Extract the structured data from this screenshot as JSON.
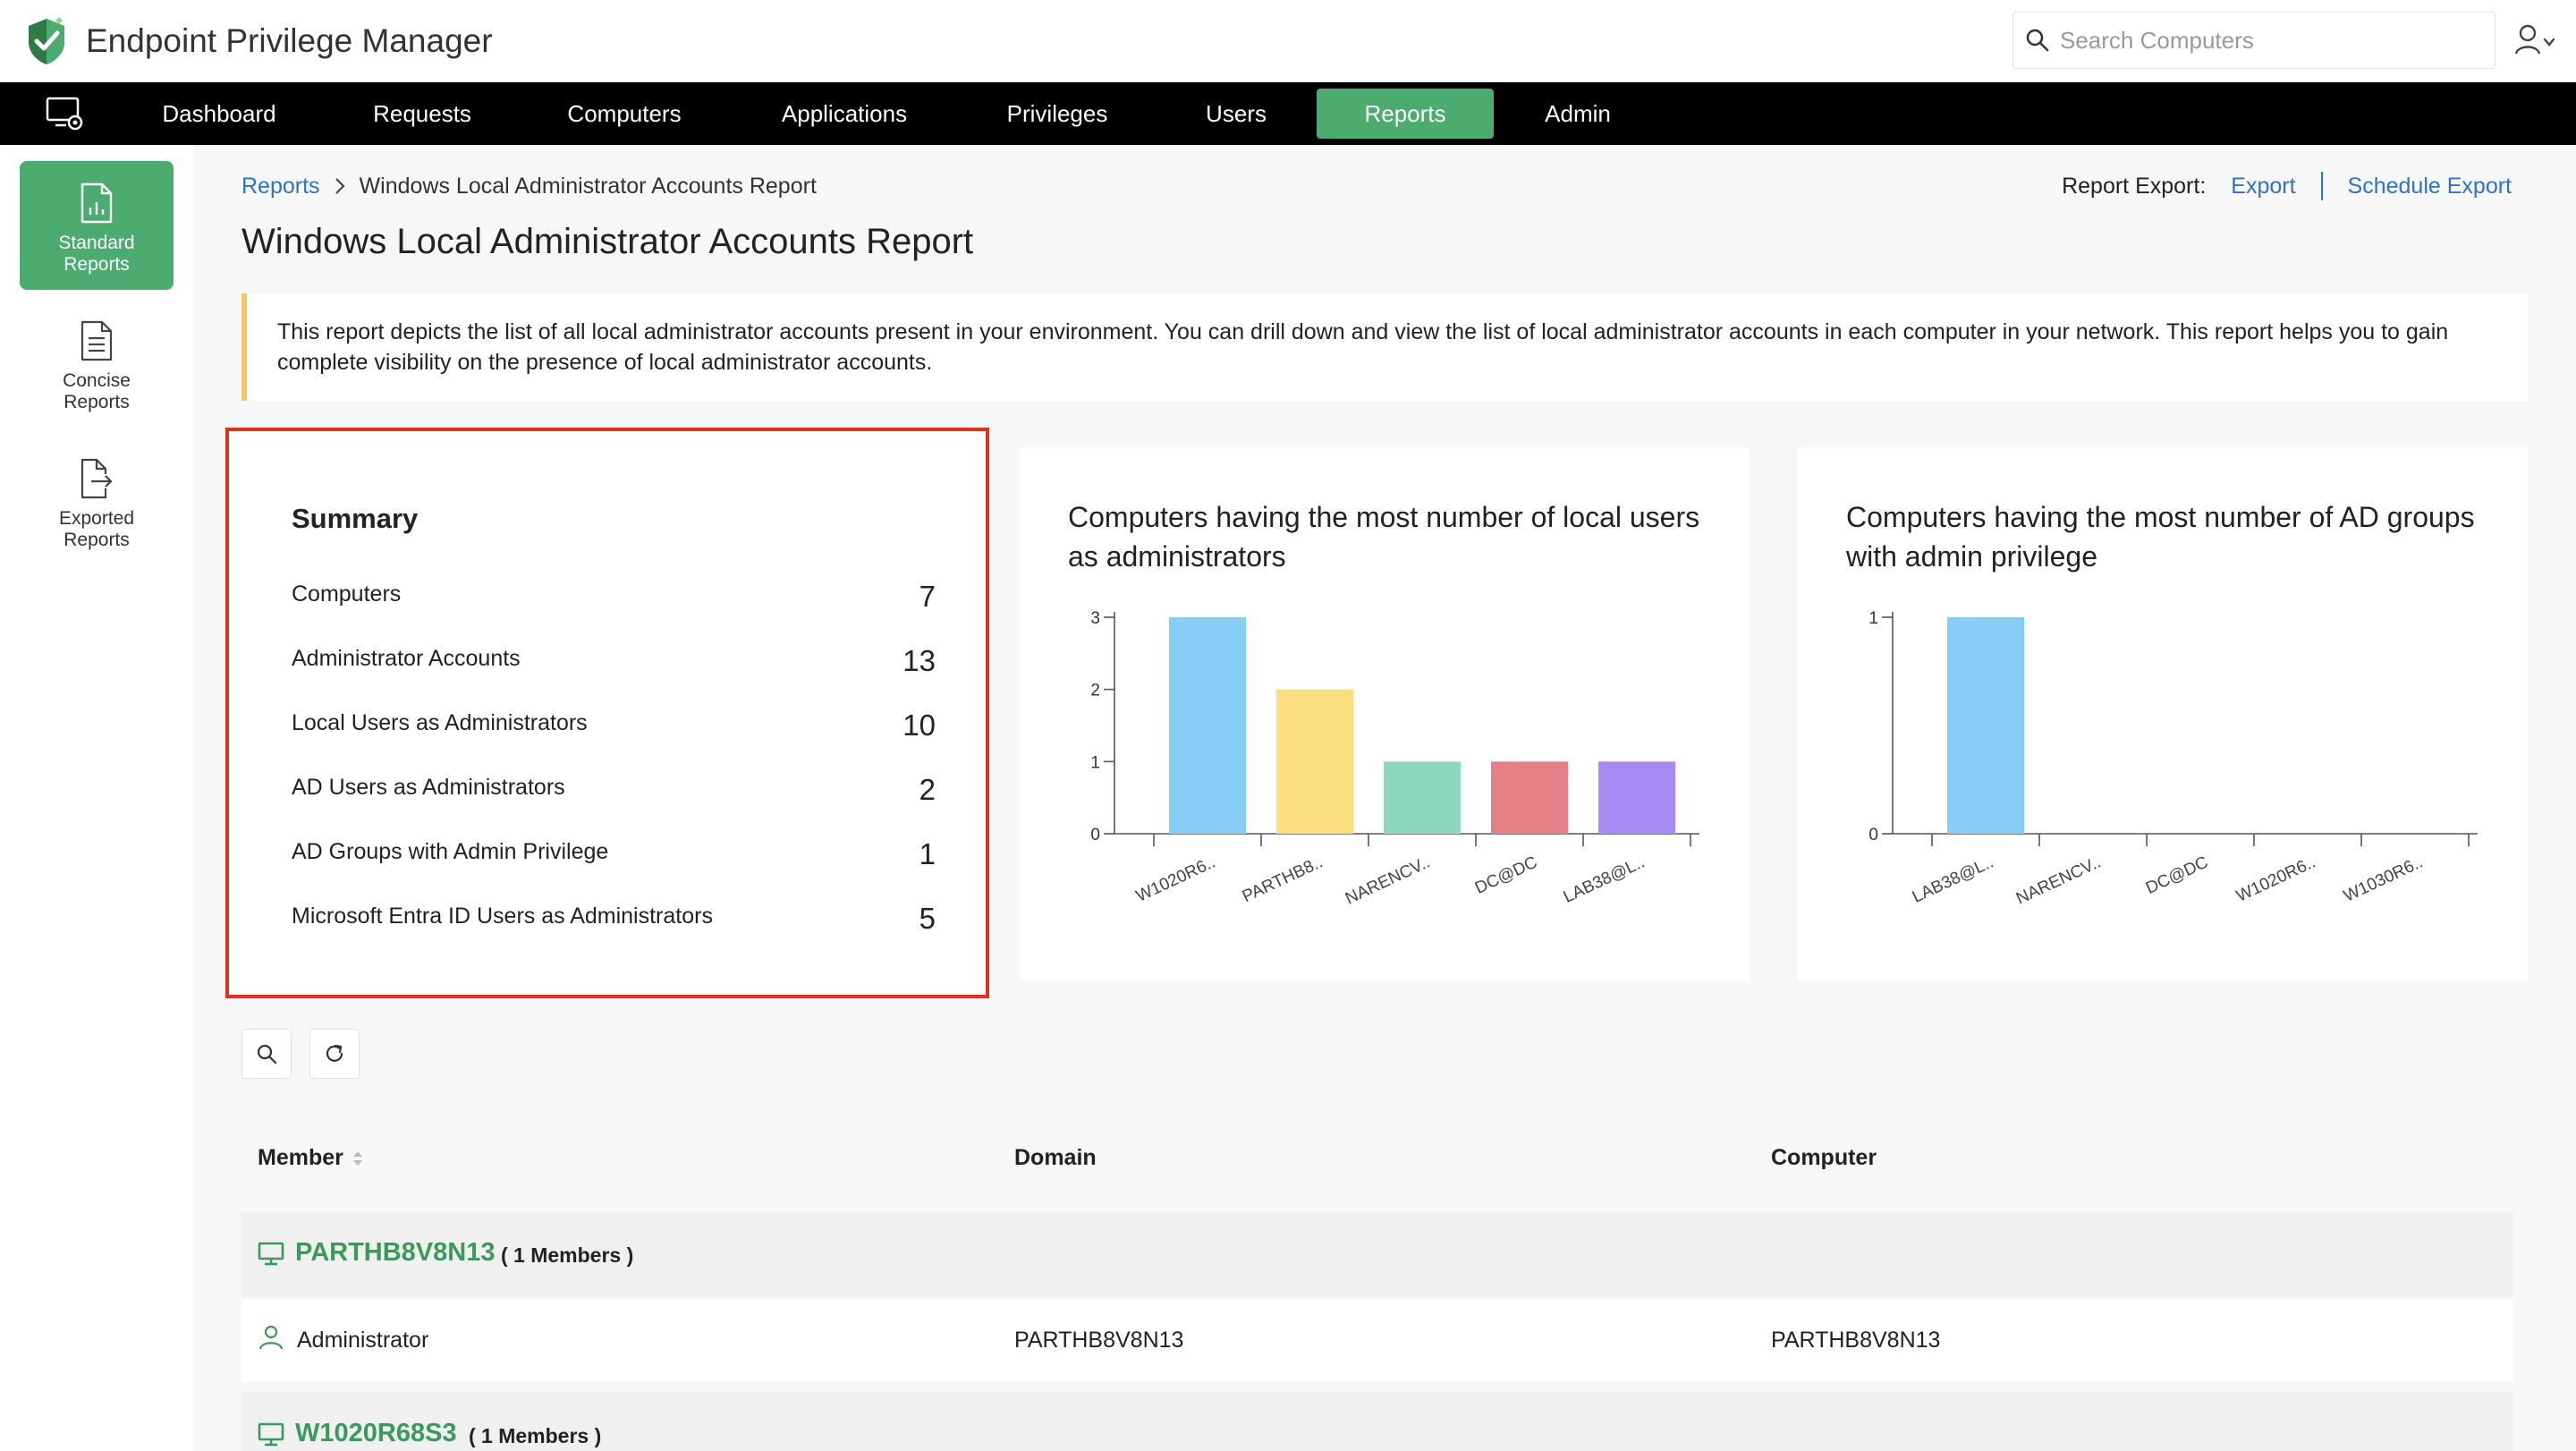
{
  "app": {
    "title": "Endpoint Privilege Manager",
    "search_placeholder": "Search Computers",
    "brand_color": "#4cac6f"
  },
  "nav": {
    "items": [
      {
        "label": "Dashboard"
      },
      {
        "label": "Requests"
      },
      {
        "label": "Computers"
      },
      {
        "label": "Applications"
      },
      {
        "label": "Privileges"
      },
      {
        "label": "Users"
      },
      {
        "label": "Reports",
        "active": true
      },
      {
        "label": "Admin"
      }
    ]
  },
  "sidebar": {
    "items": [
      {
        "label_line1": "Standard",
        "label_line2": "Reports",
        "icon": "report-chart-icon",
        "active": true
      },
      {
        "label_line1": "Concise",
        "label_line2": "Reports",
        "icon": "document-icon"
      },
      {
        "label_line1": "Exported",
        "label_line2": "Reports",
        "icon": "export-file-icon"
      }
    ]
  },
  "breadcrumb": {
    "parent": "Reports",
    "current": "Windows Local Administrator Accounts Report"
  },
  "export": {
    "label": "Report Export:",
    "export_link": "Export",
    "schedule_link": "Schedule Export"
  },
  "page_title": "Windows Local Administrator Accounts Report",
  "info_text": "This report depicts the list of all local administrator accounts present in your environment. You can drill down and view the list of local administrator accounts in each computer in your network. This report helps you to gain complete visibility on the presence of local administrator accounts.",
  "summary": {
    "title": "Summary",
    "rows": [
      {
        "label": "Computers",
        "value": "7"
      },
      {
        "label": "Administrator Accounts",
        "value": "13"
      },
      {
        "label": "Local Users as Administrators",
        "value": "10"
      },
      {
        "label": "AD Users as Administrators",
        "value": "2"
      },
      {
        "label": "AD Groups with Admin Privilege",
        "value": "1"
      },
      {
        "label": "Microsoft Entra ID Users as Administrators",
        "value": "5"
      }
    ]
  },
  "chart_data": [
    {
      "type": "bar",
      "title": "Computers having the most number of local users as administrators",
      "categories": [
        "W1020R6..",
        "PARTHB8..",
        "NARENCV..",
        "DC@DC",
        "LAB38@L.."
      ],
      "values": [
        3,
        2,
        1,
        1,
        1
      ],
      "colors": [
        "#88cdf6",
        "#f9df7f",
        "#8fd6bf",
        "#e57f86",
        "#a58af2"
      ],
      "ylim": [
        0,
        3
      ],
      "yticks": [
        0,
        1,
        2,
        3
      ],
      "grid": false
    },
    {
      "type": "bar",
      "title": "Computers having the most number of AD groups with admin privilege",
      "categories": [
        "LAB38@L..",
        "NARENCV..",
        "DC@DC",
        "W1020R6..",
        "W1030R6.."
      ],
      "values": [
        1,
        0,
        0,
        0,
        0
      ],
      "colors": [
        "#88cdf6",
        "#f9df7f",
        "#8fd6bf",
        "#e57f86",
        "#a58af2"
      ],
      "ylim": [
        0,
        1
      ],
      "yticks": [
        0,
        1
      ],
      "grid": false
    }
  ],
  "table": {
    "columns": [
      {
        "label": "Member"
      },
      {
        "label": "Domain"
      },
      {
        "label": "Computer"
      }
    ],
    "groups": [
      {
        "name": "PARTHB8V8N13",
        "count_label": "( 1 Members )",
        "rows": [
          {
            "member": "Administrator",
            "domain": "PARTHB8V8N13",
            "computer": "PARTHB8V8N13"
          }
        ]
      },
      {
        "name": "W1020R68S3",
        "count_label": "( 1 Members )",
        "rows": []
      }
    ]
  }
}
